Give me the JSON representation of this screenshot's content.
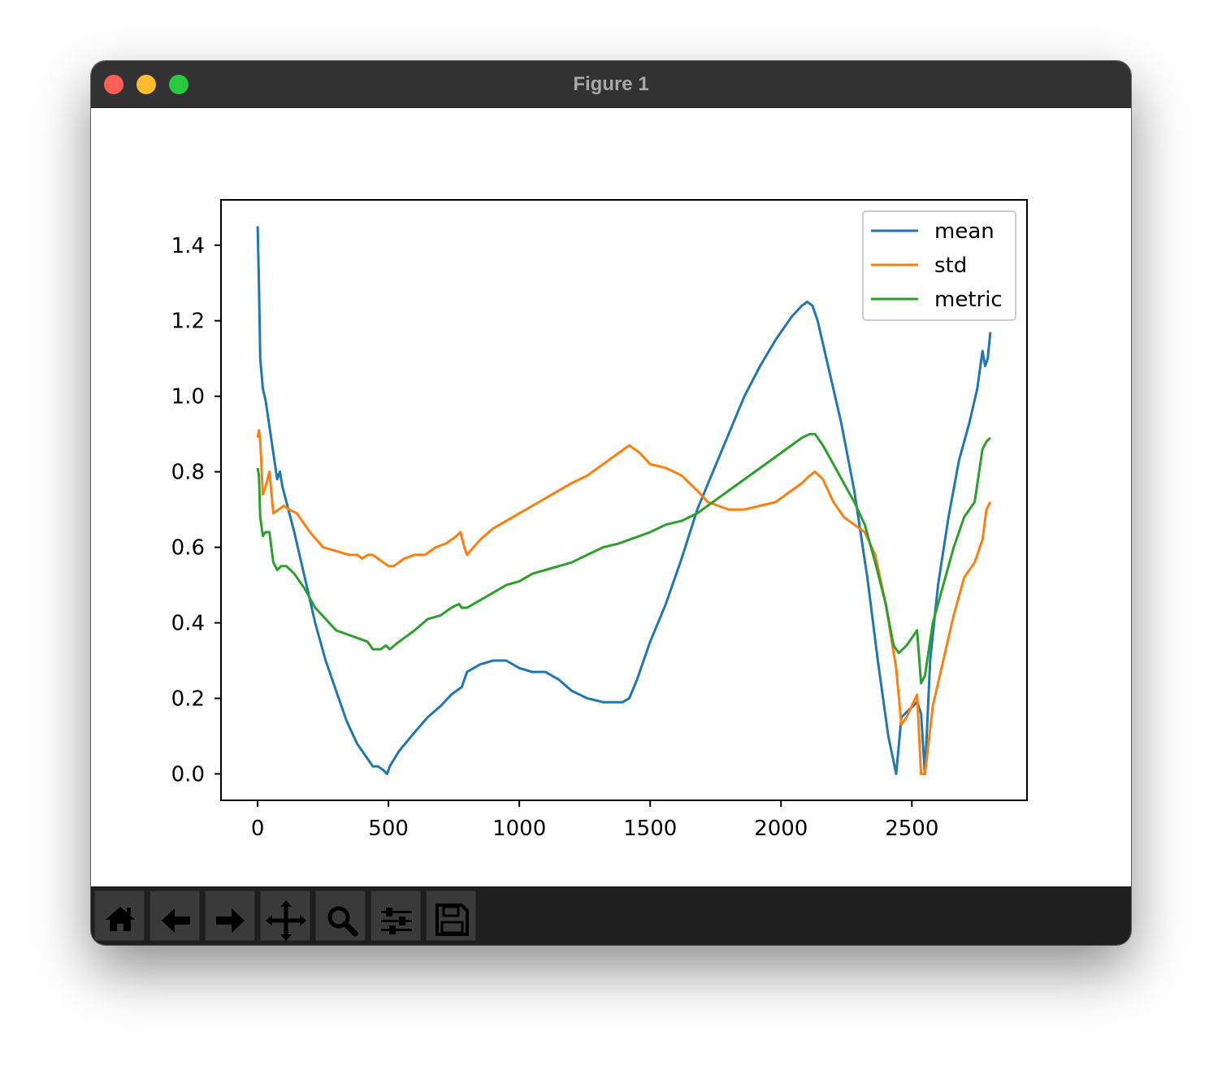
{
  "window": {
    "title": "Figure 1"
  },
  "toolbar": {
    "buttons": [
      {
        "icon": "home-icon"
      },
      {
        "icon": "arrow-left-icon"
      },
      {
        "icon": "arrow-right-icon"
      },
      {
        "icon": "move-icon"
      },
      {
        "icon": "zoom-icon"
      },
      {
        "icon": "sliders-icon"
      },
      {
        "icon": "save-icon"
      }
    ]
  },
  "chart_data": {
    "type": "line",
    "xlim": [
      -140,
      2940
    ],
    "ylim": [
      -0.07,
      1.52
    ],
    "xticks": [
      0,
      500,
      1000,
      1500,
      2000,
      2500
    ],
    "xtick_labels": [
      "0",
      "500",
      "1000",
      "1500",
      "2000",
      "2500"
    ],
    "yticks": [
      0.0,
      0.2,
      0.4,
      0.6,
      0.8,
      1.0,
      1.2,
      1.4
    ],
    "ytick_labels": [
      "0.0",
      "0.2",
      "0.4",
      "0.6",
      "0.8",
      "1.0",
      "1.2",
      "1.4"
    ],
    "grid": false,
    "legend_position": "upper right",
    "series": [
      {
        "name": "mean",
        "color": "#1f77b4",
        "x": [
          0,
          5,
          10,
          20,
          30,
          45,
          60,
          75,
          85,
          95,
          110,
          140,
          180,
          220,
          260,
          300,
          340,
          380,
          420,
          440,
          460,
          480,
          495,
          505,
          540,
          600,
          650,
          700,
          740,
          780,
          800,
          850,
          900,
          950,
          1000,
          1050,
          1100,
          1150,
          1200,
          1260,
          1320,
          1370,
          1395,
          1420,
          1450,
          1500,
          1560,
          1620,
          1680,
          1740,
          1800,
          1860,
          1920,
          1980,
          2040,
          2080,
          2100,
          2120,
          2140,
          2180,
          2230,
          2280,
          2330,
          2370,
          2410,
          2440,
          2460,
          2490,
          2520,
          2535,
          2550,
          2570,
          2600,
          2640,
          2680,
          2720,
          2750,
          2770,
          2780,
          2790,
          2800
        ],
        "y": [
          1.45,
          1.3,
          1.1,
          1.02,
          0.99,
          0.92,
          0.85,
          0.78,
          0.8,
          0.76,
          0.72,
          0.64,
          0.52,
          0.4,
          0.3,
          0.22,
          0.14,
          0.08,
          0.04,
          0.02,
          0.02,
          0.01,
          0.0,
          0.02,
          0.06,
          0.11,
          0.15,
          0.18,
          0.21,
          0.23,
          0.27,
          0.29,
          0.3,
          0.3,
          0.28,
          0.27,
          0.27,
          0.25,
          0.22,
          0.2,
          0.19,
          0.19,
          0.19,
          0.2,
          0.25,
          0.35,
          0.45,
          0.57,
          0.7,
          0.8,
          0.9,
          1.0,
          1.08,
          1.15,
          1.21,
          1.24,
          1.25,
          1.24,
          1.2,
          1.08,
          0.93,
          0.75,
          0.52,
          0.3,
          0.1,
          0.0,
          0.15,
          0.17,
          0.19,
          0.16,
          0.0,
          0.3,
          0.5,
          0.68,
          0.83,
          0.93,
          1.02,
          1.12,
          1.08,
          1.1,
          1.17
        ]
      },
      {
        "name": "std",
        "color": "#ff7f0e",
        "x": [
          0,
          5,
          10,
          20,
          30,
          45,
          60,
          80,
          100,
          120,
          150,
          200,
          250,
          300,
          350,
          380,
          400,
          420,
          440,
          460,
          480,
          500,
          520,
          560,
          600,
          640,
          680,
          720,
          760,
          775,
          790,
          800,
          850,
          900,
          950,
          1000,
          1050,
          1100,
          1150,
          1200,
          1260,
          1320,
          1380,
          1420,
          1440,
          1460,
          1500,
          1560,
          1620,
          1680,
          1720,
          1760,
          1800,
          1860,
          1920,
          1980,
          2040,
          2080,
          2110,
          2130,
          2160,
          2200,
          2240,
          2280,
          2320,
          2360,
          2400,
          2440,
          2460,
          2480,
          2500,
          2520,
          2535,
          2550,
          2580,
          2620,
          2660,
          2700,
          2740,
          2770,
          2785,
          2800
        ],
        "y": [
          0.89,
          0.91,
          0.88,
          0.74,
          0.76,
          0.8,
          0.69,
          0.7,
          0.71,
          0.7,
          0.69,
          0.64,
          0.6,
          0.59,
          0.58,
          0.58,
          0.57,
          0.58,
          0.58,
          0.57,
          0.56,
          0.55,
          0.55,
          0.57,
          0.58,
          0.58,
          0.6,
          0.61,
          0.63,
          0.64,
          0.6,
          0.58,
          0.62,
          0.65,
          0.67,
          0.69,
          0.71,
          0.73,
          0.75,
          0.77,
          0.79,
          0.82,
          0.85,
          0.87,
          0.86,
          0.85,
          0.82,
          0.81,
          0.79,
          0.75,
          0.72,
          0.71,
          0.7,
          0.7,
          0.71,
          0.72,
          0.75,
          0.77,
          0.79,
          0.8,
          0.78,
          0.72,
          0.68,
          0.66,
          0.64,
          0.58,
          0.45,
          0.28,
          0.13,
          0.15,
          0.18,
          0.21,
          0.0,
          0.0,
          0.18,
          0.3,
          0.42,
          0.52,
          0.56,
          0.62,
          0.7,
          0.72
        ]
      },
      {
        "name": "metric",
        "color": "#2ca02c",
        "x": [
          0,
          5,
          10,
          20,
          30,
          45,
          60,
          75,
          90,
          110,
          140,
          180,
          220,
          260,
          300,
          340,
          380,
          420,
          440,
          470,
          490,
          505,
          540,
          600,
          650,
          700,
          740,
          770,
          780,
          800,
          850,
          900,
          950,
          1000,
          1050,
          1100,
          1150,
          1200,
          1260,
          1320,
          1380,
          1420,
          1460,
          1500,
          1560,
          1620,
          1680,
          1740,
          1800,
          1860,
          1920,
          1980,
          2040,
          2080,
          2110,
          2130,
          2160,
          2200,
          2240,
          2280,
          2320,
          2360,
          2400,
          2430,
          2450,
          2480,
          2500,
          2520,
          2535,
          2550,
          2580,
          2620,
          2660,
          2700,
          2740,
          2770,
          2785,
          2800
        ],
        "y": [
          0.81,
          0.79,
          0.68,
          0.63,
          0.64,
          0.64,
          0.56,
          0.54,
          0.55,
          0.55,
          0.53,
          0.49,
          0.44,
          0.41,
          0.38,
          0.37,
          0.36,
          0.35,
          0.33,
          0.33,
          0.34,
          0.33,
          0.35,
          0.38,
          0.41,
          0.42,
          0.44,
          0.45,
          0.44,
          0.44,
          0.46,
          0.48,
          0.5,
          0.51,
          0.53,
          0.54,
          0.55,
          0.56,
          0.58,
          0.6,
          0.61,
          0.62,
          0.63,
          0.64,
          0.66,
          0.67,
          0.69,
          0.72,
          0.75,
          0.78,
          0.81,
          0.84,
          0.87,
          0.89,
          0.9,
          0.9,
          0.87,
          0.82,
          0.77,
          0.72,
          0.66,
          0.56,
          0.45,
          0.34,
          0.32,
          0.34,
          0.36,
          0.38,
          0.24,
          0.26,
          0.4,
          0.5,
          0.6,
          0.68,
          0.72,
          0.86,
          0.88,
          0.89
        ]
      }
    ]
  }
}
